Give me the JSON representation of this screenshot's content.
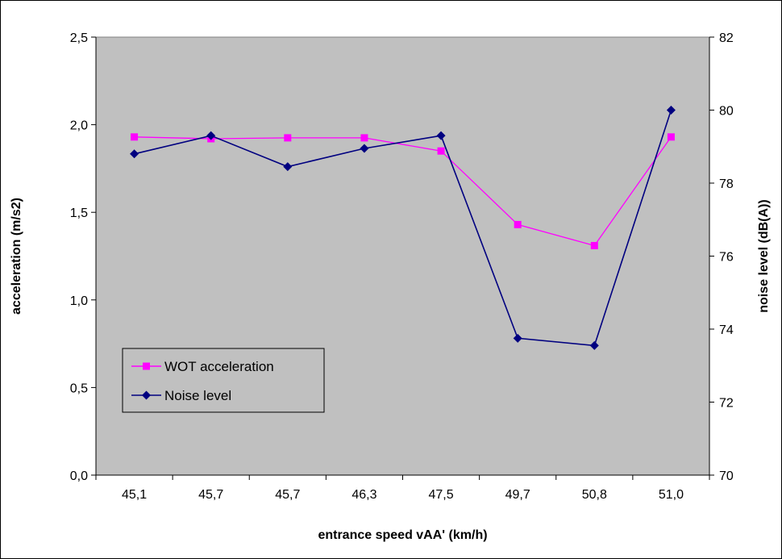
{
  "chart_data": {
    "type": "line",
    "categories": [
      "45,1",
      "45,7",
      "45,7",
      "46,3",
      "47,5",
      "49,7",
      "50,8",
      "51,0"
    ],
    "xlabel": "entrance speed vAA' (km/h)",
    "ylabel": "acceleration (m/s2)",
    "y2label": "noise level (dB(A))",
    "ylim": [
      0,
      2.5
    ],
    "y2lim": [
      70,
      82
    ],
    "yticks": [
      "0,0",
      "0,5",
      "1,0",
      "1,5",
      "2,0",
      "2,5"
    ],
    "y2ticks": [
      "70",
      "72",
      "74",
      "76",
      "78",
      "80",
      "82"
    ],
    "grid": false,
    "legend_position": "bottom-left",
    "plot_background": "#c0c0c0",
    "series": [
      {
        "name": "WOT acceleration",
        "axis": "left",
        "color": "#ff00ff",
        "marker": "square",
        "values": [
          1.93,
          1.92,
          1.925,
          1.925,
          1.85,
          1.43,
          1.31,
          1.93
        ]
      },
      {
        "name": "Noise level",
        "axis": "right",
        "color": "#000080",
        "marker": "diamond",
        "values": [
          78.8,
          79.3,
          78.45,
          78.95,
          79.3,
          73.75,
          73.55,
          80.0
        ]
      }
    ]
  }
}
